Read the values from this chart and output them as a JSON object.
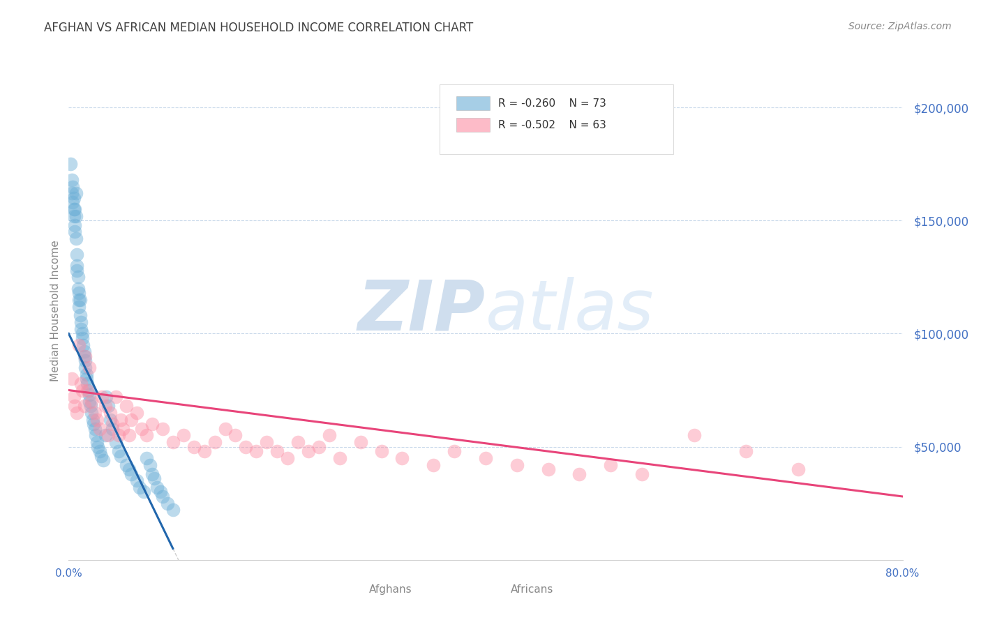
{
  "title": "AFGHAN VS AFRICAN MEDIAN HOUSEHOLD INCOME CORRELATION CHART",
  "source": "Source: ZipAtlas.com",
  "ylabel": "Median Household Income",
  "legend_blue_r": "R = -0.260",
  "legend_blue_n": "N = 73",
  "legend_pink_r": "R = -0.502",
  "legend_pink_n": "N = 63",
  "ytick_labels": [
    "$200,000",
    "$150,000",
    "$100,000",
    "$50,000"
  ],
  "ytick_values": [
    200000,
    150000,
    100000,
    50000
  ],
  "xlim": [
    0.0,
    0.8
  ],
  "ylim": [
    0,
    220000
  ],
  "afghan_x": [
    0.002,
    0.003,
    0.003,
    0.004,
    0.004,
    0.005,
    0.005,
    0.005,
    0.006,
    0.006,
    0.006,
    0.007,
    0.007,
    0.007,
    0.008,
    0.008,
    0.008,
    0.009,
    0.009,
    0.01,
    0.01,
    0.01,
    0.011,
    0.011,
    0.012,
    0.012,
    0.013,
    0.013,
    0.014,
    0.015,
    0.015,
    0.016,
    0.016,
    0.017,
    0.017,
    0.018,
    0.019,
    0.02,
    0.02,
    0.021,
    0.022,
    0.023,
    0.024,
    0.025,
    0.026,
    0.027,
    0.028,
    0.03,
    0.031,
    0.033,
    0.035,
    0.036,
    0.038,
    0.04,
    0.042,
    0.045,
    0.048,
    0.05,
    0.055,
    0.058,
    0.06,
    0.065,
    0.068,
    0.072,
    0.075,
    0.078,
    0.08,
    0.082,
    0.085,
    0.088,
    0.09,
    0.095,
    0.1
  ],
  "afghan_y": [
    175000,
    162000,
    168000,
    158000,
    165000,
    155000,
    160000,
    152000,
    148000,
    155000,
    145000,
    162000,
    142000,
    152000,
    135000,
    130000,
    128000,
    125000,
    120000,
    115000,
    118000,
    112000,
    108000,
    115000,
    105000,
    102000,
    100000,
    98000,
    95000,
    90000,
    92000,
    88000,
    85000,
    82000,
    80000,
    78000,
    75000,
    73000,
    70000,
    68000,
    65000,
    62000,
    60000,
    58000,
    55000,
    52000,
    50000,
    48000,
    46000,
    44000,
    55000,
    72000,
    68000,
    62000,
    58000,
    52000,
    48000,
    46000,
    42000,
    40000,
    38000,
    35000,
    32000,
    30000,
    45000,
    42000,
    38000,
    36000,
    32000,
    30000,
    28000,
    25000,
    22000
  ],
  "african_x": [
    0.003,
    0.005,
    0.006,
    0.008,
    0.01,
    0.012,
    0.013,
    0.015,
    0.016,
    0.018,
    0.02,
    0.022,
    0.025,
    0.027,
    0.03,
    0.032,
    0.035,
    0.038,
    0.04,
    0.042,
    0.045,
    0.048,
    0.05,
    0.052,
    0.055,
    0.058,
    0.06,
    0.065,
    0.07,
    0.075,
    0.08,
    0.09,
    0.1,
    0.11,
    0.12,
    0.13,
    0.14,
    0.15,
    0.16,
    0.17,
    0.18,
    0.19,
    0.2,
    0.21,
    0.22,
    0.23,
    0.24,
    0.25,
    0.26,
    0.28,
    0.3,
    0.32,
    0.35,
    0.37,
    0.4,
    0.43,
    0.46,
    0.49,
    0.52,
    0.55,
    0.6,
    0.65,
    0.7
  ],
  "african_y": [
    80000,
    72000,
    68000,
    65000,
    95000,
    78000,
    75000,
    68000,
    90000,
    75000,
    85000,
    70000,
    65000,
    62000,
    58000,
    72000,
    68000,
    55000,
    65000,
    60000,
    72000,
    55000,
    62000,
    58000,
    68000,
    55000,
    62000,
    65000,
    58000,
    55000,
    60000,
    58000,
    52000,
    55000,
    50000,
    48000,
    52000,
    58000,
    55000,
    50000,
    48000,
    52000,
    48000,
    45000,
    52000,
    48000,
    50000,
    55000,
    45000,
    52000,
    48000,
    45000,
    42000,
    48000,
    45000,
    42000,
    40000,
    38000,
    42000,
    38000,
    55000,
    48000,
    40000
  ],
  "blue_color": "#6baed6",
  "pink_color": "#fc8ea4",
  "blue_line_color": "#2166ac",
  "pink_line_color": "#e8457a",
  "gray_dash_color": "#bbbbbb",
  "grid_color": "#c8d8ea",
  "background_color": "#ffffff",
  "title_color": "#404040",
  "source_color": "#888888",
  "axis_label_color": "#888888",
  "right_tick_color": "#4472c4",
  "bottom_tick_color": "#4472c4",
  "watermark_zip_color": "#a8c4e0",
  "watermark_atlas_color": "#c0d8f0"
}
